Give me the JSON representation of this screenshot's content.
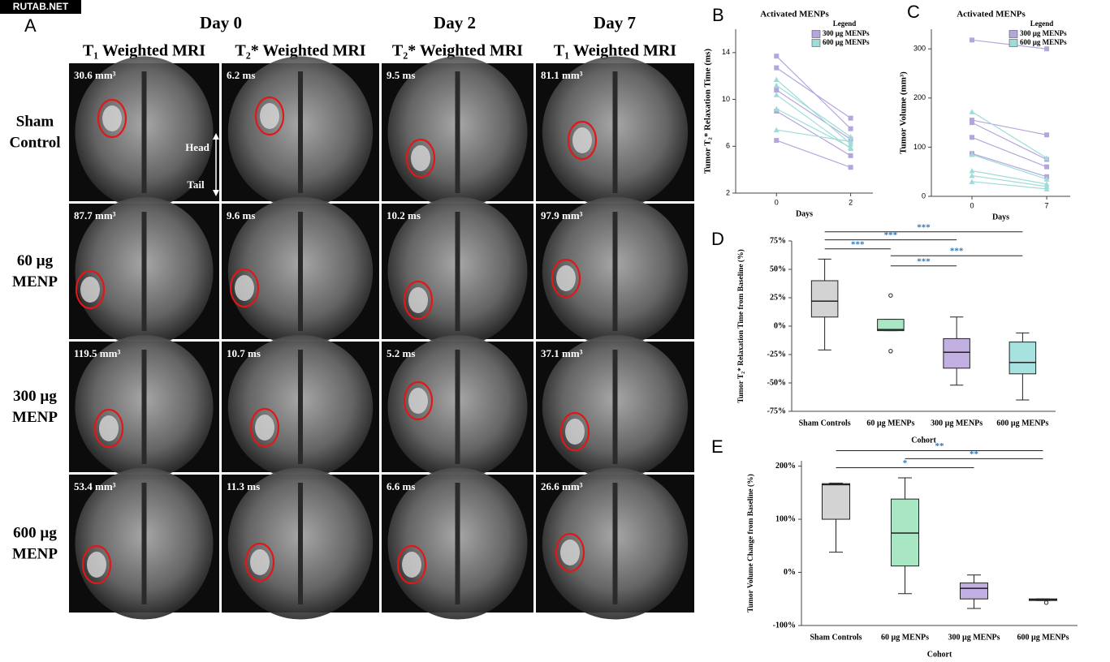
{
  "watermark": "RUTAB.NET",
  "panel_a": {
    "label": "A",
    "day_headers": [
      "Day 0",
      "Day 2",
      "Day 7"
    ],
    "sequence_headers": [
      "T₁ Weighted MRI",
      "T₂* Weighted MRI",
      "T₂* Weighted MRI",
      "T₁ Weighted MRI"
    ],
    "row_labels": [
      [
        "Sham",
        "Control"
      ],
      [
        "60 µg",
        "MENP"
      ],
      [
        "300 µg",
        "MENP"
      ],
      [
        "600 µg",
        "MENP"
      ]
    ],
    "cells": [
      [
        "30.6 mm³",
        "6.2 ms",
        "9.5 ms",
        "81.1 mm³"
      ],
      [
        "87.7 mm³",
        "9.6 ms",
        "10.2 ms",
        "97.9 mm³"
      ],
      [
        "119.5 mm³",
        "10.7 ms",
        "5.2 ms",
        "37.1 mm³"
      ],
      [
        "53.4 mm³",
        "11.3 ms",
        "6.6 ms",
        "26.6 mm³"
      ]
    ],
    "orientation": {
      "head": "Head",
      "tail": "Tail"
    }
  },
  "chart_data": [
    {
      "type": "paired-line",
      "label": "B",
      "title": "Activated MENPs",
      "x_label": "Days",
      "y_label": "Tumor T₂* Relaxation Time (ms)",
      "x": [
        0,
        2
      ],
      "xlim": [
        -1.1,
        2.6
      ],
      "xticks": [
        0,
        2
      ],
      "ylim": [
        2,
        16
      ],
      "yticks": [
        2,
        6,
        10,
        14
      ],
      "legend_title": "Legend",
      "legend": "upper right",
      "series": [
        {
          "name": "300 µg MENPs",
          "color": "#b4a6dc",
          "marker": "square",
          "subjects": [
            [
              13.7,
              7.5
            ],
            [
              12.7,
              8.4
            ],
            [
              10.8,
              6.6
            ],
            [
              9.0,
              5.2
            ],
            [
              6.5,
              4.2
            ]
          ]
        },
        {
          "name": "600 µg MENPs",
          "color": "#9fdcd8",
          "marker": "triangle",
          "subjects": [
            [
              11.7,
              6.2
            ],
            [
              11.2,
              6.8
            ],
            [
              10.4,
              5.8
            ],
            [
              9.2,
              5.9
            ],
            [
              7.4,
              6.4
            ]
          ]
        }
      ]
    },
    {
      "type": "paired-line",
      "label": "C",
      "title": "Activated MENPs",
      "x_label": "Days",
      "y_label": "Tumor Volume (mm³)",
      "x": [
        0,
        7
      ],
      "xlim": [
        -3.8,
        9.2
      ],
      "xticks": [
        0,
        7
      ],
      "ylim": [
        0,
        340
      ],
      "yticks": [
        0,
        100,
        200,
        300
      ],
      "legend_title": "Legend",
      "legend": "upper right",
      "series": [
        {
          "name": "300 µg MENPs",
          "color": "#b4a6dc",
          "marker": "square",
          "subjects": [
            [
              318,
              300
            ],
            [
              155,
              125
            ],
            [
              150,
              75
            ],
            [
              120,
              60
            ],
            [
              87,
              40
            ]
          ]
        },
        {
          "name": "600 µg MENPs",
          "color": "#9fdcd8",
          "marker": "triangle",
          "subjects": [
            [
              172,
              78
            ],
            [
              85,
              35
            ],
            [
              52,
              25
            ],
            [
              42,
              20
            ],
            [
              30,
              15
            ]
          ]
        }
      ]
    },
    {
      "type": "box",
      "label": "D",
      "x_label": "Cohort",
      "y_label": "Tumor T₂* Relaxation Time from Baseline (%)",
      "categories": [
        "Sham Controls",
        "60 µg MENPs",
        "300 µg MENPs",
        "600 µg MENPs"
      ],
      "ylim": [
        -75,
        75
      ],
      "yticks": [
        {
          "value": -75,
          "label": "-75%"
        },
        {
          "value": -50,
          "label": "-50%"
        },
        {
          "value": -25,
          "label": "-25%"
        },
        {
          "value": 0,
          "label": "0%"
        },
        {
          "value": 25,
          "label": "25%"
        },
        {
          "value": 50,
          "label": "50%"
        },
        {
          "value": 75,
          "label": "75%"
        }
      ],
      "boxes": [
        {
          "min": -21,
          "q1": 8,
          "median": 22,
          "q3": 40,
          "max": 59,
          "outliers": [],
          "color": "#d3d3d3"
        },
        {
          "min": -4,
          "q1": -4,
          "median": -3,
          "q3": 6,
          "max": 6,
          "outliers": [
            27,
            -22
          ],
          "color": "#a9e6c4"
        },
        {
          "min": -52,
          "q1": -37,
          "median": -23,
          "q3": -11,
          "max": 8,
          "outliers": [],
          "color": "#c2b0e2"
        },
        {
          "min": -65,
          "q1": -42,
          "median": -32,
          "q3": -14,
          "max": -6,
          "outliers": [],
          "color": "#a8e2e0"
        }
      ],
      "significance_color": "#2e75b6",
      "significance": [
        {
          "from": 0,
          "to": 3,
          "y": 83,
          "label": "***"
        },
        {
          "from": 0,
          "to": 2,
          "y": 76,
          "label": "***"
        },
        {
          "from": 0,
          "to": 1,
          "y": 68,
          "label": "***"
        },
        {
          "from": 1,
          "to": 3,
          "y": 62,
          "label": "***"
        },
        {
          "from": 1,
          "to": 2,
          "y": 53,
          "label": "***"
        }
      ]
    },
    {
      "type": "box",
      "label": "E",
      "x_label": "Cohort",
      "y_label": "Tumor Volume Change from Baseline (%)",
      "categories": [
        "Sham Controls",
        "60 µg MENPs",
        "300 µg MENPs",
        "600 µg MENPs"
      ],
      "ylim": [
        -100,
        210
      ],
      "yticks": [
        {
          "value": -100,
          "label": "-100%"
        },
        {
          "value": 0,
          "label": "0%"
        },
        {
          "value": 100,
          "label": "100%"
        },
        {
          "value": 200,
          "label": "200%"
        }
      ],
      "boxes": [
        {
          "min": 38,
          "q1": 100,
          "median": 165,
          "q3": 167,
          "max": 168,
          "outliers": [],
          "color": "#d3d3d3"
        },
        {
          "min": -40,
          "q1": 12,
          "median": 74,
          "q3": 138,
          "max": 178,
          "outliers": [],
          "color": "#a9e6c4"
        },
        {
          "min": -68,
          "q1": -50,
          "median": -30,
          "q3": -20,
          "max": -5,
          "outliers": [],
          "color": "#c2b0e2"
        },
        {
          "min": -53,
          "q1": -53,
          "median": -51,
          "q3": -50,
          "max": -50,
          "outliers": [
            -57
          ],
          "color": "#a8e2e0"
        }
      ],
      "significance_color": "#2e75b6",
      "significance": [
        {
          "from": 0,
          "to": 3,
          "y": 229,
          "label": "**"
        },
        {
          "from": 1,
          "to": 3,
          "y": 214,
          "label": "**"
        },
        {
          "from": 0,
          "to": 2,
          "y": 197,
          "label": "*"
        }
      ]
    }
  ]
}
